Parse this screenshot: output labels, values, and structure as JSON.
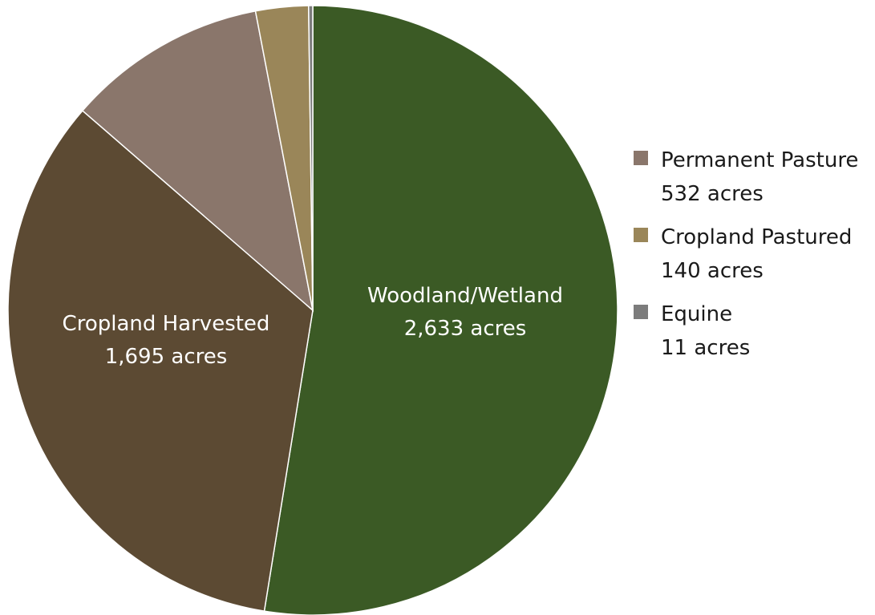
{
  "chart_data": {
    "type": "pie",
    "title": "",
    "unit": "acres",
    "slices": [
      {
        "name": "Woodland/Wetland",
        "value": 2633,
        "value_label": "2,633 acres",
        "color": "#3b5a25",
        "label_placement": "inside"
      },
      {
        "name": "Cropland Harvested",
        "value": 1695,
        "value_label": "1,695 acres",
        "color": "#5c4a33",
        "label_placement": "inside"
      },
      {
        "name": "Permanent Pasture",
        "value": 532,
        "value_label": "532 acres",
        "color": "#8a766b",
        "label_placement": "legend"
      },
      {
        "name": "Cropland Pastured",
        "value": 140,
        "value_label": "140 acres",
        "color": "#9a8659",
        "label_placement": "legend"
      },
      {
        "name": "Equine",
        "value": 11,
        "value_label": "11 acres",
        "color": "#7c7c7c",
        "label_placement": "legend"
      }
    ],
    "start_angle": "12 o'clock",
    "direction": "clockwise",
    "legend_position": "right"
  }
}
